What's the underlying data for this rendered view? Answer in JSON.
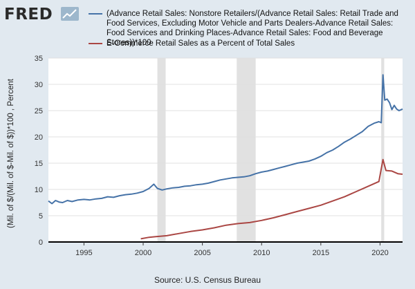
{
  "brand": {
    "logo_text": "FRED"
  },
  "source_text": "Source: U.S. Census Bureau",
  "chart_data": {
    "type": "line",
    "ylabel": "(Mil. of $/(Mil. of $-Mil. of $))*100 , Percent",
    "xlabel": "",
    "xlim": [
      1992,
      2021.9
    ],
    "ylim": [
      0,
      35
    ],
    "x_ticks": [
      1995,
      2000,
      2005,
      2010,
      2015,
      2020
    ],
    "y_ticks": [
      0,
      5,
      10,
      15,
      20,
      25,
      30,
      35
    ],
    "grid": "horizontal",
    "legend_placement": "top",
    "recessions": [
      [
        2001.2,
        2001.9
      ],
      [
        2007.9,
        2009.5
      ],
      [
        2020.1,
        2020.35
      ]
    ],
    "series": [
      {
        "name": "(Advance Retail Sales: Nonstore Retailers/(Advance Retail Sales: Retail Trade and Food Services, Excluding Motor Vehicle and Parts Dealers-Advance Retail Sales: Food Services and Drinking Places-Advance Retail Sales: Food and Beverage Stores))*100",
        "color": "#4572a7",
        "points": [
          [
            1992.0,
            7.8
          ],
          [
            1992.3,
            7.3
          ],
          [
            1992.6,
            7.9
          ],
          [
            1992.9,
            7.6
          ],
          [
            1993.2,
            7.5
          ],
          [
            1993.6,
            7.9
          ],
          [
            1994.0,
            7.7
          ],
          [
            1994.5,
            8.0
          ],
          [
            1995.0,
            8.1
          ],
          [
            1995.5,
            8.0
          ],
          [
            1996.0,
            8.2
          ],
          [
            1996.5,
            8.3
          ],
          [
            1997.0,
            8.6
          ],
          [
            1997.5,
            8.5
          ],
          [
            1998.0,
            8.8
          ],
          [
            1998.5,
            9.0
          ],
          [
            1999.0,
            9.1
          ],
          [
            1999.5,
            9.3
          ],
          [
            2000.0,
            9.6
          ],
          [
            2000.5,
            10.2
          ],
          [
            2000.9,
            11.0
          ],
          [
            2001.2,
            10.2
          ],
          [
            2001.6,
            9.9
          ],
          [
            2002.0,
            10.1
          ],
          [
            2002.5,
            10.3
          ],
          [
            2003.0,
            10.4
          ],
          [
            2003.5,
            10.6
          ],
          [
            2004.0,
            10.7
          ],
          [
            2004.5,
            10.9
          ],
          [
            2005.0,
            11.0
          ],
          [
            2005.5,
            11.2
          ],
          [
            2006.0,
            11.5
          ],
          [
            2006.5,
            11.8
          ],
          [
            2007.0,
            12.0
          ],
          [
            2007.5,
            12.2
          ],
          [
            2008.0,
            12.3
          ],
          [
            2008.5,
            12.4
          ],
          [
            2009.0,
            12.6
          ],
          [
            2009.5,
            13.0
          ],
          [
            2010.0,
            13.3
          ],
          [
            2010.5,
            13.5
          ],
          [
            2011.0,
            13.8
          ],
          [
            2011.5,
            14.1
          ],
          [
            2012.0,
            14.4
          ],
          [
            2012.5,
            14.7
          ],
          [
            2013.0,
            15.0
          ],
          [
            2013.5,
            15.2
          ],
          [
            2014.0,
            15.4
          ],
          [
            2014.5,
            15.8
          ],
          [
            2015.0,
            16.3
          ],
          [
            2015.5,
            17.0
          ],
          [
            2016.0,
            17.5
          ],
          [
            2016.5,
            18.2
          ],
          [
            2017.0,
            19.0
          ],
          [
            2017.5,
            19.6
          ],
          [
            2018.0,
            20.3
          ],
          [
            2018.5,
            21.0
          ],
          [
            2019.0,
            22.0
          ],
          [
            2019.5,
            22.6
          ],
          [
            2019.9,
            22.9
          ],
          [
            2020.1,
            22.7
          ],
          [
            2020.25,
            31.8
          ],
          [
            2020.4,
            27.0
          ],
          [
            2020.6,
            27.2
          ],
          [
            2020.8,
            26.5
          ],
          [
            2021.0,
            25.2
          ],
          [
            2021.2,
            26.0
          ],
          [
            2021.4,
            25.3
          ],
          [
            2021.6,
            25.0
          ],
          [
            2021.9,
            25.3
          ]
        ]
      },
      {
        "name": "E-Commerce Retail Sales as a Percent of Total Sales",
        "color": "#aa4643",
        "points": [
          [
            1999.8,
            0.6
          ],
          [
            2000.5,
            0.9
          ],
          [
            2001.0,
            1.0
          ],
          [
            2001.5,
            1.1
          ],
          [
            2002.0,
            1.2
          ],
          [
            2003.0,
            1.6
          ],
          [
            2004.0,
            2.0
          ],
          [
            2005.0,
            2.3
          ],
          [
            2006.0,
            2.7
          ],
          [
            2007.0,
            3.2
          ],
          [
            2008.0,
            3.5
          ],
          [
            2009.0,
            3.7
          ],
          [
            2010.0,
            4.1
          ],
          [
            2011.0,
            4.6
          ],
          [
            2012.0,
            5.2
          ],
          [
            2013.0,
            5.8
          ],
          [
            2014.0,
            6.4
          ],
          [
            2015.0,
            7.0
          ],
          [
            2016.0,
            7.8
          ],
          [
            2017.0,
            8.6
          ],
          [
            2018.0,
            9.6
          ],
          [
            2019.0,
            10.6
          ],
          [
            2019.9,
            11.5
          ],
          [
            2020.25,
            15.7
          ],
          [
            2020.5,
            13.6
          ],
          [
            2021.0,
            13.5
          ],
          [
            2021.5,
            13.0
          ],
          [
            2021.9,
            12.9
          ]
        ]
      }
    ]
  }
}
